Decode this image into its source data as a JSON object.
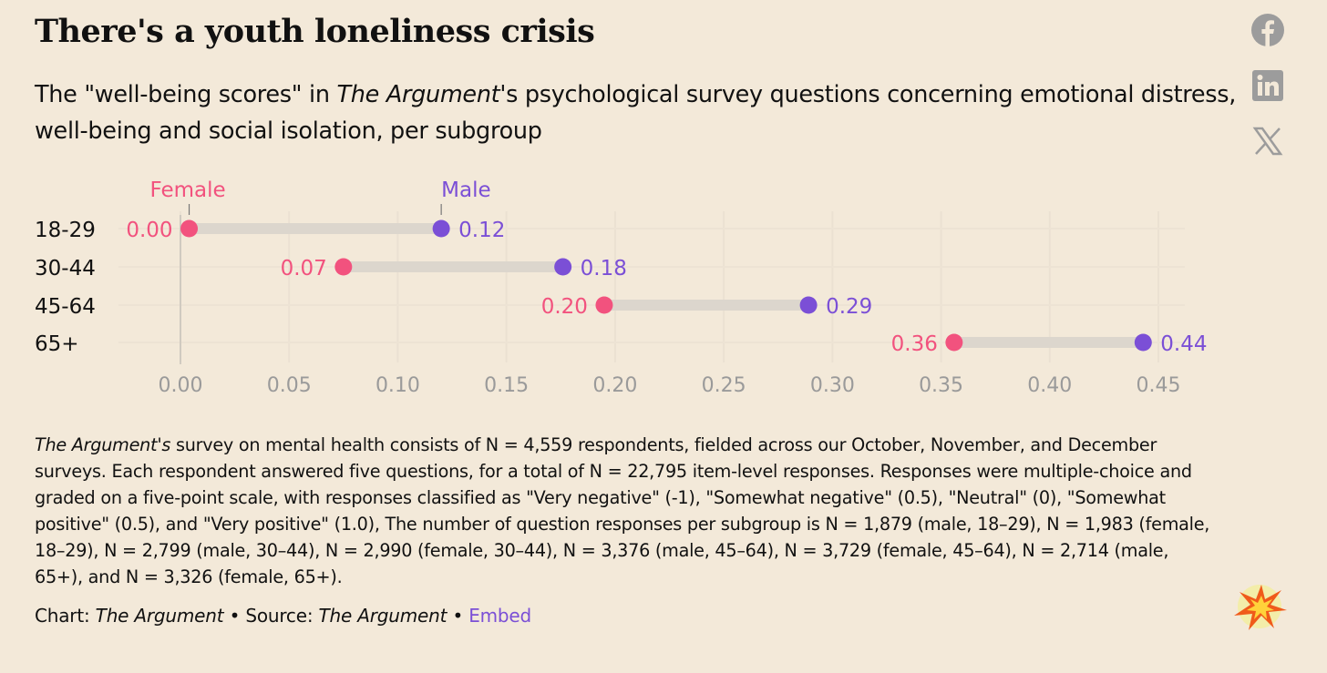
{
  "title": "There's a youth loneliness crisis",
  "subtitle": {
    "pre": "The \"well-being scores\" in ",
    "italic": "The Argument",
    "post": "'s psychological survey questions concerning emotional distress, well-being and social isolation, per subgroup"
  },
  "social": [
    "facebook-icon",
    "linkedin-icon",
    "x-icon"
  ],
  "colors": {
    "female": "#f2527e",
    "male": "#7b4fd6",
    "bar": "#dcd6cd",
    "tick": "#9a9a9a"
  },
  "chart_data": {
    "type": "dumbbell",
    "title": "There's a youth loneliness crisis",
    "categories": [
      "18-29",
      "30-44",
      "45-64",
      "65+"
    ],
    "series": [
      {
        "name": "Female",
        "values": [
          0.004,
          0.075,
          0.195,
          0.356
        ],
        "labels": [
          "0.00",
          "0.07",
          "0.20",
          "0.36"
        ]
      },
      {
        "name": "Male",
        "values": [
          0.12,
          0.176,
          0.289,
          0.443
        ],
        "labels": [
          "0.12",
          "0.18",
          "0.29",
          "0.44"
        ]
      }
    ],
    "xticks": [
      "0.00",
      "0.05",
      "0.10",
      "0.15",
      "0.20",
      "0.25",
      "0.30",
      "0.35",
      "0.40",
      "0.45"
    ],
    "xlim": [
      0,
      0.45
    ],
    "grid": true,
    "legend": "inline-top"
  },
  "notes": {
    "italic": "The Argument's",
    "text": " survey on mental health consists of N = 4,559 respondents, fielded across our October, November, and December surveys. Each respondent answered five questions, for a total of N = 22,795 item-level responses. Responses were multiple-choice and graded on a five-point scale, with responses classified as \"Very negative\" (-1), \"Somewhat negative\" (0.5), \"Neutral\" (0), \"Somewhat positive\" (0.5), and \"Very positive\" (1.0), The number of question responses per subgroup is N = 1,879 (male, 18–29), N = 1,983 (female, 18–29), N = 2,799 (male, 30–44), N = 2,990 (female, 30–44), N = 3,376 (male, 45–64), N = 3,729 (female, 45–64), N = 2,714 (male, 65+), and N = 3,326 (female, 65+)."
  },
  "credit": {
    "chart_label": "Chart: ",
    "chart_src": "The Argument",
    "sep1": " • Source: ",
    "source": "The Argument",
    "sep2": " • ",
    "embed": "Embed"
  }
}
